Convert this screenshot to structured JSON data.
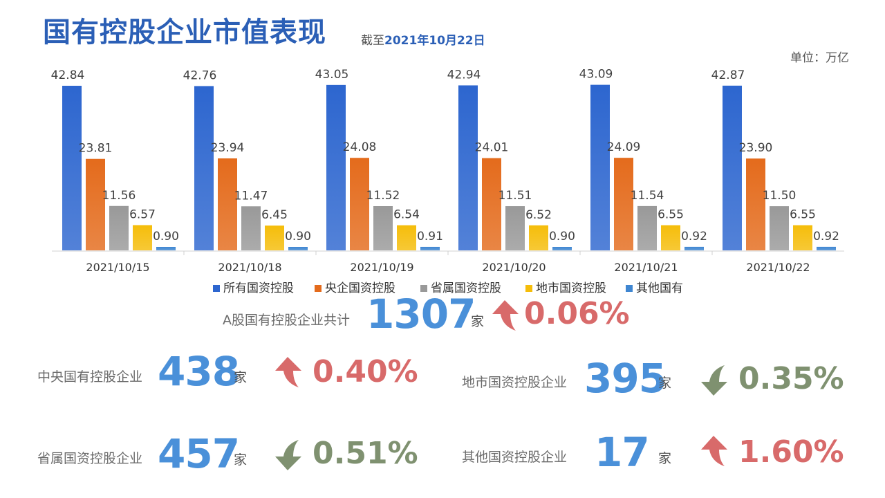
{
  "header": {
    "title": "国有控股企业市值表现",
    "date_prefix": "截至",
    "date_value": "2021年10月22日",
    "unit": "单位：万亿"
  },
  "chart_data": {
    "type": "bar",
    "categories": [
      "2021/10/15",
      "2021/10/18",
      "2021/10/19",
      "2021/10/20",
      "2021/10/21",
      "2021/10/22"
    ],
    "series": [
      {
        "name": "所有国资控股",
        "color": "#2d66cf",
        "values": [
          42.84,
          42.76,
          43.05,
          42.94,
          43.09,
          42.87
        ]
      },
      {
        "name": "央企国资控股",
        "color": "#e46b1c",
        "values": [
          23.81,
          23.94,
          24.08,
          24.01,
          24.09,
          23.9
        ]
      },
      {
        "name": "省属国资控股",
        "color": "#999999",
        "values": [
          11.56,
          11.47,
          11.52,
          11.51,
          11.54,
          11.5
        ]
      },
      {
        "name": "地市国资控股",
        "color": "#f5bd0a",
        "values": [
          6.57,
          6.45,
          6.54,
          6.52,
          6.55,
          6.55
        ]
      },
      {
        "name": "其他国有",
        "color": "#3f86d1",
        "values": [
          0.9,
          0.9,
          0.91,
          0.9,
          0.92,
          0.92
        ]
      }
    ],
    "ylim": [
      0,
      45
    ],
    "legend": "bottom",
    "grid": false
  },
  "summary": {
    "total_label": "A股国有控股企业共计",
    "total_value": "1307",
    "total_unit": "家",
    "total_change": "0.06%",
    "total_direction": "up"
  },
  "stats": [
    {
      "key": "central",
      "label": "中央国有控股企业",
      "value": "438",
      "unit": "家",
      "change": "0.40%",
      "direction": "up"
    },
    {
      "key": "city",
      "label": "地市国资控股企业",
      "value": "395",
      "unit": "家",
      "change": "0.35%",
      "direction": "down"
    },
    {
      "key": "province",
      "label": "省属国资控股企业",
      "value": "457",
      "unit": "家",
      "change": "0.51%",
      "direction": "down"
    },
    {
      "key": "other",
      "label": "其他国资控股企业",
      "value": "17",
      "unit": "家",
      "change": "1.60%",
      "direction": "up"
    }
  ],
  "colors": {
    "up": "#d86a6a",
    "down": "#7f9170",
    "big_number": "#4a90d9",
    "title": "#2b5fb6"
  }
}
